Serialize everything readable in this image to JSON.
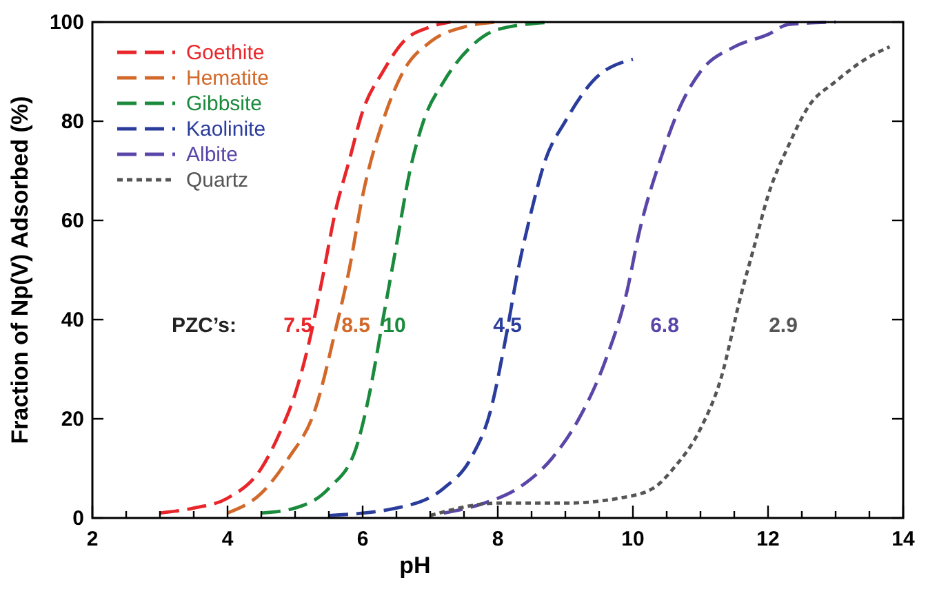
{
  "chart_data": {
    "type": "line",
    "xlabel": "pH",
    "ylabel": "Fraction of Np(V) Adsorbed (%)",
    "xlim": [
      2,
      14
    ],
    "ylim": [
      0,
      100
    ],
    "xticks": [
      2,
      {
        "value": 2.5,
        "label": null
      },
      4,
      {
        "value": 3,
        "label": null
      },
      {
        "value": 3.5,
        "label": null
      },
      {
        "value": 4.5,
        "label": null
      },
      {
        "value": 5,
        "label": null
      },
      {
        "value": 5.5,
        "label": null
      },
      6,
      {
        "value": 6.5,
        "label": null
      },
      {
        "value": 7,
        "label": null
      },
      {
        "value": 7.5,
        "label": null
      },
      8,
      {
        "value": 8.5,
        "label": null
      },
      {
        "value": 9,
        "label": null
      },
      {
        "value": 9.5,
        "label": null
      },
      10,
      {
        "value": 10.5,
        "label": null
      },
      {
        "value": 11,
        "label": null
      },
      {
        "value": 11.5,
        "label": null
      },
      12,
      {
        "value": 12.5,
        "label": null
      },
      {
        "value": 13,
        "label": null
      },
      {
        "value": 13.5,
        "label": null
      },
      14
    ],
    "yticks": [
      0,
      20,
      40,
      60,
      80,
      100
    ],
    "grid": false,
    "legend": "top left",
    "marker": "none",
    "series": [
      {
        "name": "Goethite",
        "color": "#e8262a",
        "line_style": "dashed",
        "x": [
          3,
          3.5,
          4,
          4.5,
          4.8,
          5,
          5.2,
          5.4,
          5.6,
          5.8,
          6,
          6.3,
          6.6,
          7,
          7.3
        ],
        "values": [
          1,
          2,
          4,
          10,
          18,
          25,
          35,
          48,
          62,
          72,
          82,
          90,
          96,
          99,
          100
        ]
      },
      {
        "name": "Hematite",
        "color": "#d2692a",
        "line_style": "dashed",
        "x": [
          4,
          4.5,
          4.9,
          5.3,
          5.6,
          5.8,
          6,
          6.3,
          6.6,
          7,
          7.5,
          8
        ],
        "values": [
          1,
          5,
          12,
          22,
          38,
          50,
          65,
          80,
          90,
          96,
          99,
          100
        ]
      },
      {
        "name": "Gibbsite",
        "color": "#1a8a3c",
        "line_style": "dashed",
        "x": [
          4.5,
          5,
          5.5,
          5.9,
          6.1,
          6.3,
          6.5,
          6.7,
          6.9,
          7.2,
          7.6,
          8,
          8.8
        ],
        "values": [
          1,
          2,
          6,
          14,
          25,
          40,
          55,
          70,
          80,
          88,
          95,
          98.5,
          100
        ]
      },
      {
        "name": "Kaolinite",
        "color": "#2a3c9c",
        "line_style": "dashed",
        "x": [
          5.5,
          6.5,
          7.2,
          7.6,
          7.9,
          8.1,
          8.3,
          8.5,
          8.7,
          9,
          9.4,
          10
        ],
        "values": [
          0.5,
          2,
          6,
          12,
          22,
          35,
          50,
          62,
          72,
          80,
          88,
          92.5
        ]
      },
      {
        "name": "Albite",
        "color": "#5a46a8",
        "line_style": "dashed",
        "x": [
          7.2,
          7.8,
          8.3,
          8.8,
          9.2,
          9.6,
          9.9,
          10.1,
          10.4,
          10.7,
          11,
          11.5,
          12,
          12.3,
          13
        ],
        "values": [
          1,
          3,
          6,
          12,
          20,
          32,
          45,
          58,
          72,
          83,
          90,
          95,
          97.5,
          99.5,
          100
        ]
      },
      {
        "name": "Quartz",
        "color": "#555555",
        "line_style": "dotted",
        "x": [
          7,
          8,
          9,
          9.8,
          10.3,
          10.6,
          11,
          11.3,
          11.6,
          11.8,
          12,
          12.3,
          12.6,
          13,
          13.5,
          13.8
        ],
        "values": [
          0.5,
          3,
          3,
          4,
          6,
          10,
          18,
          28,
          45,
          55,
          65,
          75,
          83,
          88,
          93,
          95
        ]
      }
    ],
    "annotations": [
      "PZC’s:",
      "7.5",
      "8.5",
      "10",
      "4.5",
      "6.8",
      "2.9"
    ]
  }
}
